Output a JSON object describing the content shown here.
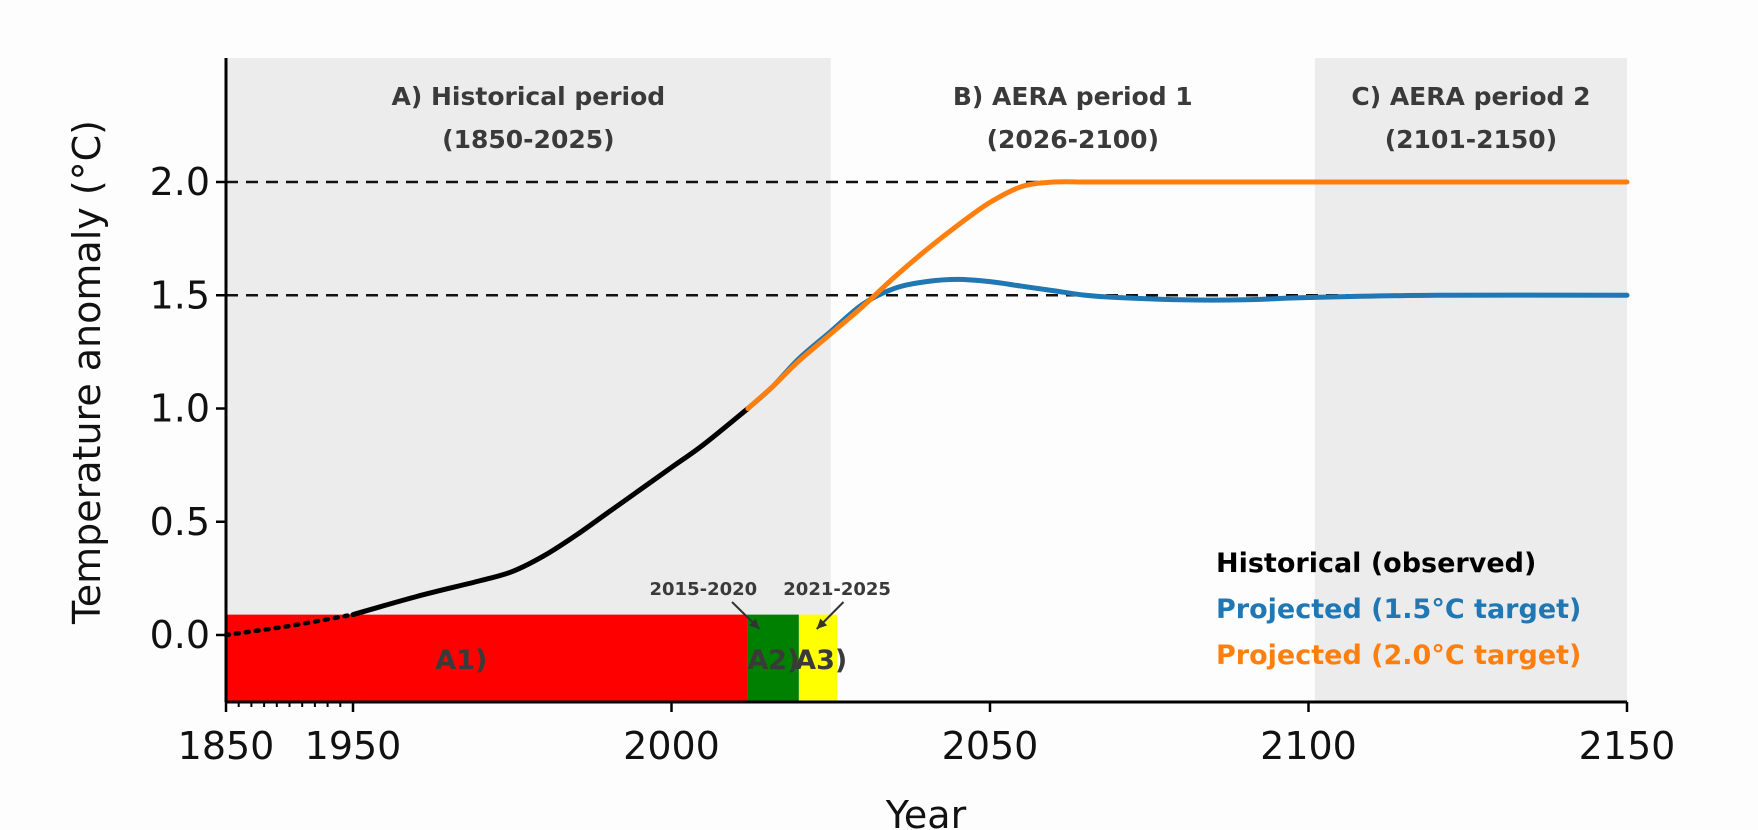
{
  "chart_data": {
    "type": "line",
    "xlabel": "Year",
    "ylabel": "Temperature anomaly (°C)",
    "ylim": [
      -0.3,
      2.5
    ],
    "y_ticks": [
      "0.0",
      "0.5",
      "1.0",
      "1.5",
      "2.0"
    ],
    "y_tick_values": [
      0.0,
      0.5,
      1.0,
      1.5,
      2.0
    ],
    "x_tick_labels": [
      "1850",
      "1950",
      "2000",
      "2050",
      "2100",
      "2150"
    ],
    "x_ticks": [
      1850,
      1950,
      2000,
      2050,
      2100,
      2150
    ],
    "x_axis_note": "broken axis: 1850-1950 compressed",
    "reference_lines": [
      1.5,
      2.0
    ],
    "periods": [
      {
        "line1": "A) Historical period",
        "line2": "(1850-2025)",
        "start": 1850,
        "end": 2025,
        "shaded": true
      },
      {
        "line1": "B) AERA period 1",
        "line2": "(2026-2100)",
        "start": 2026,
        "end": 2100,
        "shaded": false
      },
      {
        "line1": "C) AERA period 2",
        "line2": "(2101-2150)",
        "start": 2101,
        "end": 2150,
        "shaded": true
      }
    ],
    "subperiods": [
      {
        "label": "A1)",
        "start": 1850,
        "end": 2012,
        "color": "#ff0000",
        "annotation": ""
      },
      {
        "label": "A2)",
        "start": 2012,
        "end": 2020,
        "color": "#008000",
        "annotation": "2015-2020"
      },
      {
        "label": "A3)",
        "start": 2020,
        "end": 2026,
        "color": "#ffff00",
        "annotation": "2021-2025"
      }
    ],
    "series": [
      {
        "name": "Historical (observed)",
        "color": "#000000",
        "x": [
          1850,
          1900,
          1950,
          1960,
          1970,
          1975,
          1980,
          1985,
          1990,
          1995,
          2000,
          2005,
          2012
        ],
        "y": [
          0.0,
          0.04,
          0.09,
          0.17,
          0.24,
          0.28,
          0.35,
          0.44,
          0.54,
          0.64,
          0.74,
          0.84,
          1.0
        ]
      },
      {
        "name": "Projected (1.5°C target)",
        "color": "#1f77b4",
        "x": [
          2012,
          2016,
          2020,
          2025,
          2030,
          2035,
          2040,
          2045,
          2050,
          2055,
          2060,
          2065,
          2070,
          2080,
          2090,
          2100,
          2120,
          2150
        ],
        "y": [
          1.0,
          1.1,
          1.22,
          1.34,
          1.46,
          1.53,
          1.56,
          1.57,
          1.56,
          1.54,
          1.52,
          1.5,
          1.49,
          1.48,
          1.48,
          1.49,
          1.5,
          1.5
        ]
      },
      {
        "name": "Projected (2.0°C target)",
        "color": "#ff7f0e",
        "x": [
          2012,
          2016,
          2020,
          2025,
          2030,
          2035,
          2040,
          2045,
          2050,
          2055,
          2060,
          2065,
          2070,
          2080,
          2100,
          2150
        ],
        "y": [
          1.0,
          1.1,
          1.21,
          1.33,
          1.45,
          1.58,
          1.7,
          1.81,
          1.91,
          1.98,
          2.0,
          2.0,
          2.0,
          2.0,
          2.0,
          2.0
        ]
      }
    ],
    "legend_position": "bottom-right"
  }
}
